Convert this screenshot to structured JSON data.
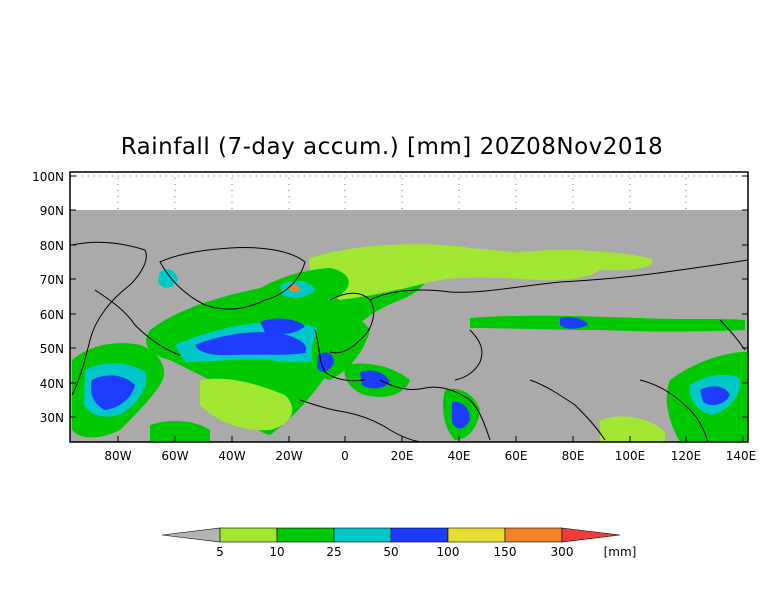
{
  "title": "Rainfall (7-day accum.) [mm] 20Z08Nov2018",
  "lat_labels": [
    "100N",
    "90N",
    "80N",
    "70N",
    "60N",
    "50N",
    "40N",
    "30N"
  ],
  "lon_labels": [
    "80W",
    "60W",
    "40W",
    "20W",
    "0",
    "20E",
    "40E",
    "60E",
    "80E",
    "100E",
    "120E",
    "140E"
  ],
  "legend": {
    "unit": "[mm]",
    "thresholds": [
      "5",
      "10",
      "25",
      "50",
      "100",
      "150",
      "300"
    ],
    "colors": [
      "#b4b4b4",
      "#a0e632",
      "#00c800",
      "#00c8c8",
      "#1e3cff",
      "#e6dc32",
      "#f08228",
      "#f03c3c"
    ]
  },
  "colors": {
    "land_mask": "#aaaaaa",
    "no_data": "#aaaaaa",
    "frame": "#000000"
  }
}
